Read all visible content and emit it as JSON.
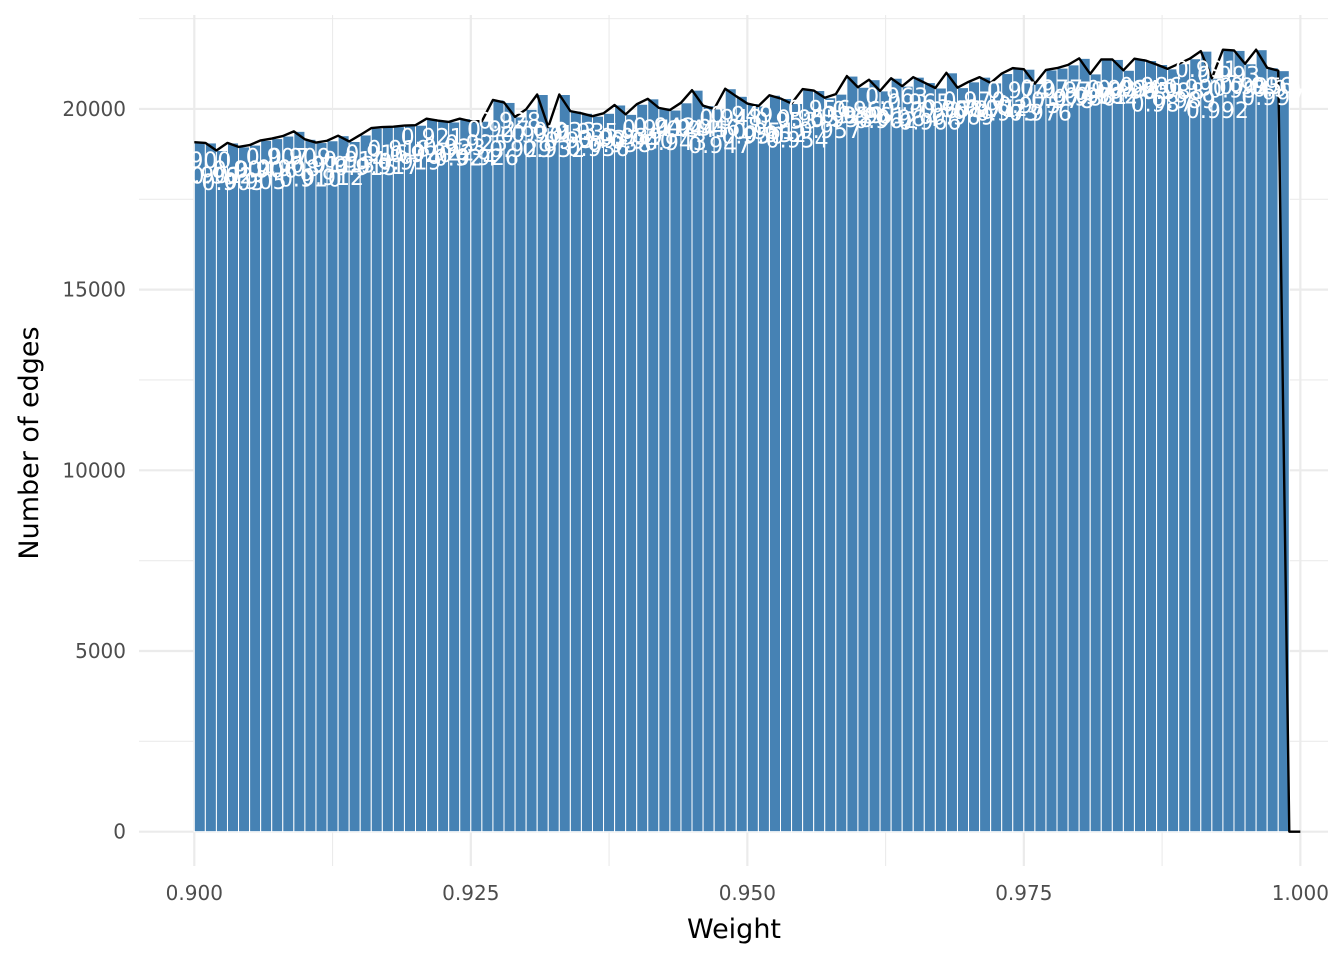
{
  "chart_data": {
    "type": "bar",
    "title": "",
    "xlabel": "Weight",
    "ylabel": "Number of edges",
    "xlim": [
      0.895,
      1.0025
    ],
    "ylim": [
      -950,
      22600
    ],
    "x_ticks": [
      {
        "value": 0.9,
        "label": "0.900"
      },
      {
        "value": 0.925,
        "label": "0.925"
      },
      {
        "value": 0.95,
        "label": "0.950"
      },
      {
        "value": 0.975,
        "label": "0.975"
      },
      {
        "value": 1.0,
        "label": "1.000"
      }
    ],
    "y_ticks": [
      {
        "value": 0,
        "label": "0"
      },
      {
        "value": 5000,
        "label": "5000"
      },
      {
        "value": 10000,
        "label": "10000"
      },
      {
        "value": 15000,
        "label": "15000"
      },
      {
        "value": 20000,
        "label": "20000"
      }
    ],
    "grid": true,
    "bin_width": 0.001,
    "bin_starts": [
      0.9,
      0.901,
      0.902,
      0.903,
      0.904,
      0.905,
      0.906,
      0.907,
      0.908,
      0.909,
      0.91,
      0.911,
      0.912,
      0.913,
      0.914,
      0.915,
      0.916,
      0.917,
      0.918,
      0.919,
      0.92,
      0.921,
      0.922,
      0.923,
      0.924,
      0.925,
      0.926,
      0.927,
      0.928,
      0.929,
      0.93,
      0.931,
      0.932,
      0.933,
      0.934,
      0.935,
      0.936,
      0.937,
      0.938,
      0.939,
      0.94,
      0.941,
      0.942,
      0.943,
      0.944,
      0.945,
      0.946,
      0.947,
      0.948,
      0.949,
      0.95,
      0.951,
      0.952,
      0.953,
      0.954,
      0.955,
      0.956,
      0.957,
      0.958,
      0.959,
      0.96,
      0.961,
      0.962,
      0.963,
      0.964,
      0.965,
      0.966,
      0.967,
      0.968,
      0.969,
      0.97,
      0.971,
      0.972,
      0.973,
      0.974,
      0.975,
      0.976,
      0.977,
      0.978,
      0.979,
      0.98,
      0.981,
      0.982,
      0.983,
      0.984,
      0.985,
      0.986,
      0.987,
      0.988,
      0.989,
      0.99,
      0.991,
      0.992,
      0.993,
      0.994,
      0.995,
      0.996,
      0.997,
      0.998,
      0.999
    ],
    "values": [
      19080,
      19060,
      18850,
      19060,
      18950,
      19000,
      19130,
      19180,
      19250,
      19380,
      19160,
      19070,
      19120,
      19260,
      19100,
      19280,
      19470,
      19500,
      19510,
      19540,
      19550,
      19730,
      19680,
      19640,
      19730,
      19660,
      19660,
      20250,
      20180,
      19780,
      19990,
      20400,
      19500,
      20400,
      19940,
      19880,
      19800,
      19880,
      20110,
      19850,
      20130,
      20280,
      20030,
      19970,
      20170,
      20520,
      20090,
      20000,
      20560,
      20350,
      20150,
      20080,
      20380,
      20290,
      20150,
      20550,
      20510,
      20310,
      20410,
      20910,
      20600,
      20810,
      20500,
      20850,
      20630,
      20880,
      20730,
      20580,
      21000,
      20590,
      20750,
      20880,
      20720,
      20980,
      21130,
      21100,
      20700,
      21080,
      21130,
      21220,
      21400,
      20970,
      21370,
      21370,
      21070,
      21390,
      21340,
      21230,
      21110,
      21250,
      21390,
      21600,
      20850,
      21640,
      21620,
      21250,
      21640,
      21140,
      21060,
      0
    ],
    "line_x": [
      0.9,
      0.901,
      0.902,
      0.903,
      0.904,
      0.905,
      0.906,
      0.907,
      0.908,
      0.909,
      0.91,
      0.911,
      0.912,
      0.913,
      0.914,
      0.915,
      0.916,
      0.917,
      0.918,
      0.919,
      0.92,
      0.921,
      0.922,
      0.923,
      0.924,
      0.925,
      0.926,
      0.927,
      0.928,
      0.929,
      0.93,
      0.931,
      0.932,
      0.933,
      0.934,
      0.935,
      0.936,
      0.937,
      0.938,
      0.939,
      0.94,
      0.941,
      0.942,
      0.943,
      0.944,
      0.945,
      0.946,
      0.947,
      0.948,
      0.949,
      0.95,
      0.951,
      0.952,
      0.953,
      0.954,
      0.955,
      0.956,
      0.957,
      0.958,
      0.959,
      0.96,
      0.961,
      0.962,
      0.963,
      0.964,
      0.965,
      0.966,
      0.967,
      0.968,
      0.969,
      0.97,
      0.971,
      0.972,
      0.973,
      0.974,
      0.975,
      0.976,
      0.977,
      0.978,
      0.979,
      0.98,
      0.981,
      0.982,
      0.983,
      0.984,
      0.985,
      0.986,
      0.987,
      0.988,
      0.989,
      0.99,
      0.991,
      0.992,
      0.993,
      0.994,
      0.995,
      0.996,
      0.997,
      0.998,
      0.999,
      1.0
    ],
    "line_values": [
      19080,
      19060,
      18850,
      19060,
      18950,
      19000,
      19130,
      19180,
      19250,
      19380,
      19160,
      19070,
      19120,
      19260,
      19100,
      19280,
      19470,
      19500,
      19510,
      19540,
      19550,
      19730,
      19680,
      19640,
      19730,
      19660,
      19660,
      20250,
      20180,
      19780,
      19990,
      20400,
      19500,
      20400,
      19940,
      19880,
      19800,
      19880,
      20110,
      19850,
      20130,
      20280,
      20030,
      19970,
      20170,
      20520,
      20090,
      20000,
      20560,
      20350,
      20150,
      20080,
      20380,
      20290,
      20150,
      20550,
      20510,
      20310,
      20410,
      20910,
      20600,
      20810,
      20500,
      20850,
      20630,
      20880,
      20730,
      20580,
      21000,
      20590,
      20750,
      20880,
      20720,
      20980,
      21130,
      21100,
      20700,
      21080,
      21130,
      21220,
      21400,
      20970,
      21370,
      21370,
      21070,
      21390,
      21340,
      21230,
      21110,
      21250,
      21390,
      21600,
      20850,
      21640,
      21620,
      21250,
      21640,
      21140,
      21060,
      0,
      0
    ],
    "bar_labels": [
      "0.900",
      "0.901",
      "0.902",
      "0.903",
      "0.904",
      "0.905",
      "0.906",
      "0.907",
      "0.908",
      "0.909",
      "0.910",
      "0.911",
      "0.912",
      "0.913",
      "0.914",
      "0.915",
      "0.916",
      "0.917",
      "0.918",
      "0.919",
      "0.920",
      "0.921",
      "0.922",
      "0.923",
      "0.924",
      "0.925",
      "0.926",
      "0.927",
      "0.928",
      "0.929",
      "0.930",
      "0.931",
      "0.932",
      "0.933",
      "0.934",
      "0.935",
      "0.936",
      "0.937",
      "0.938",
      "0.939",
      "0.940",
      "0.941",
      "0.942",
      "0.943",
      "0.944",
      "0.945",
      "0.946",
      "0.947",
      "0.948",
      "0.949",
      "0.950",
      "0.951",
      "0.952",
      "0.953",
      "0.954",
      "0.955",
      "0.956",
      "0.957",
      "0.958",
      "0.959",
      "0.960",
      "0.961",
      "0.962",
      "0.963",
      "0.964",
      "0.965",
      "0.966",
      "0.967",
      "0.968",
      "0.969",
      "0.970",
      "0.971",
      "0.972",
      "0.973",
      "0.974",
      "0.975",
      "0.976",
      "0.977",
      "0.978",
      "0.979",
      "0.980",
      "0.981",
      "0.982",
      "0.983",
      "0.984",
      "0.985",
      "0.986",
      "0.987",
      "0.988",
      "0.989",
      "0.990",
      "0.991",
      "0.992",
      "0.993",
      "0.994",
      "0.995",
      "0.996",
      "0.997",
      "0.998",
      "0.999"
    ],
    "colors": {
      "bar_fill": "#4682b4",
      "bar_stroke": "#ffffff",
      "line": "#000000",
      "grid": "#ebebeb",
      "label": "#ffffff"
    }
  }
}
